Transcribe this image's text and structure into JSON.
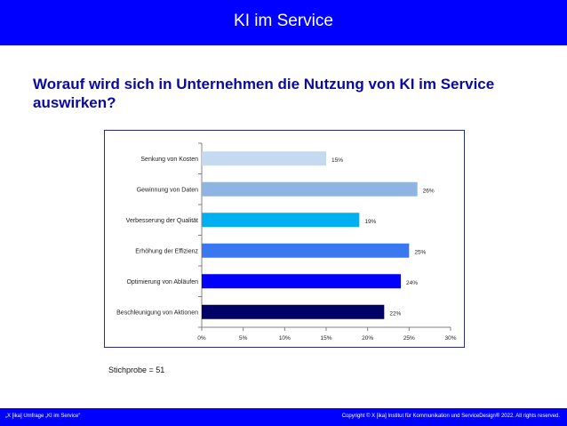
{
  "header": {
    "title": "KI im Service"
  },
  "question": "Worauf wird sich in Unternehmen die Nutzung von KI im Service auswirken?",
  "sample_note": "Stichprobe = 51",
  "footer": {
    "left": "„X [ika] Umfrage „KI im Service“",
    "right": "Copyright © X [ika] Institut für Kommunikation und ServiceDesign® 2022. All rights reserved."
  },
  "colors": {
    "header_bg": "#0000ff",
    "question_text": "#0a0aa0",
    "bars": [
      "#c5d9f1",
      "#8db4e2",
      "#00b0f0",
      "#3a78f2",
      "#0000ff",
      "#000066"
    ]
  },
  "chart_data": {
    "type": "bar",
    "orientation": "horizontal",
    "categories": [
      "Senkung von Kosten",
      "Gewinnung von Daten",
      "Verbesserung der Qualität",
      "Erhöhung der Effizienz",
      "Optimierung von Abläufen",
      "Beschleunigung von Aktionen"
    ],
    "values": [
      15,
      26,
      19,
      25,
      24,
      22
    ],
    "value_labels": [
      "15%",
      "26%",
      "19%",
      "25%",
      "24%",
      "22%"
    ],
    "x_ticks": [
      "0%",
      "5%",
      "10%",
      "15%",
      "20%",
      "25%",
      "30%"
    ],
    "xlim": [
      0,
      30
    ],
    "title": "",
    "xlabel": "",
    "ylabel": "",
    "grid": false,
    "legend": "none"
  }
}
